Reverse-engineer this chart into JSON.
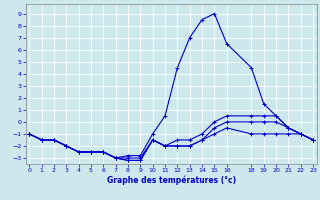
{
  "xlabel": "Graphe des températures (°c)",
  "bg_color": "#cce8ec",
  "line_color": "#0000cc",
  "grid_color": "#ffffff",
  "x_ticks": [
    0,
    1,
    2,
    3,
    4,
    5,
    6,
    7,
    8,
    9,
    10,
    11,
    12,
    13,
    14,
    15,
    16,
    18,
    19,
    20,
    21,
    22,
    23
  ],
  "ylim": [
    -3.5,
    9.8
  ],
  "xlim": [
    -0.3,
    23.3
  ],
  "yticks": [
    -3,
    -2,
    -1,
    0,
    1,
    2,
    3,
    4,
    5,
    6,
    7,
    8,
    9
  ],
  "series": {
    "line1_x": [
      0,
      1,
      2,
      3,
      4,
      5,
      6,
      7,
      8,
      9,
      10,
      11,
      12,
      13,
      14,
      15,
      16,
      18,
      19,
      20,
      21,
      22,
      23
    ],
    "line1_y": [
      -1.0,
      -1.5,
      -1.5,
      -2.0,
      -2.5,
      -2.5,
      -2.5,
      -3.0,
      -2.8,
      -2.8,
      -1.0,
      0.5,
      4.5,
      7.0,
      8.5,
      9.0,
      6.5,
      4.5,
      1.5,
      0.5,
      -0.5,
      -1.0,
      -1.5
    ],
    "line2_x": [
      0,
      1,
      2,
      3,
      4,
      5,
      6,
      7,
      8,
      9,
      10,
      11,
      12,
      13,
      14,
      15,
      16,
      18,
      19,
      20,
      21,
      22,
      23
    ],
    "line2_y": [
      -1.0,
      -1.5,
      -1.5,
      -2.0,
      -2.5,
      -2.5,
      -2.5,
      -3.0,
      -3.0,
      -3.0,
      -1.5,
      -2.0,
      -1.5,
      -1.5,
      -1.0,
      0.0,
      0.5,
      0.5,
      0.5,
      0.5,
      -0.5,
      -1.0,
      -1.5
    ],
    "line3_x": [
      0,
      1,
      2,
      3,
      4,
      5,
      6,
      7,
      8,
      9,
      10,
      11,
      12,
      13,
      14,
      15,
      16,
      18,
      19,
      20,
      21,
      22,
      23
    ],
    "line3_y": [
      -1.0,
      -1.5,
      -1.5,
      -2.0,
      -2.5,
      -2.5,
      -2.5,
      -3.0,
      -3.2,
      -3.2,
      -1.5,
      -2.0,
      -2.0,
      -2.0,
      -1.5,
      -0.5,
      0.0,
      0.0,
      0.0,
      0.0,
      -0.5,
      -1.0,
      -1.5
    ],
    "line4_x": [
      0,
      1,
      2,
      3,
      4,
      5,
      6,
      7,
      8,
      9,
      10,
      11,
      12,
      13,
      14,
      15,
      16,
      18,
      19,
      20,
      21,
      22,
      23
    ],
    "line4_y": [
      -1.0,
      -1.5,
      -1.5,
      -2.0,
      -2.5,
      -2.5,
      -2.5,
      -3.0,
      -3.2,
      -3.2,
      -1.5,
      -2.0,
      -2.0,
      -2.0,
      -1.5,
      -1.0,
      -0.5,
      -1.0,
      -1.0,
      -1.0,
      -1.0,
      -1.0,
      -1.5
    ]
  }
}
